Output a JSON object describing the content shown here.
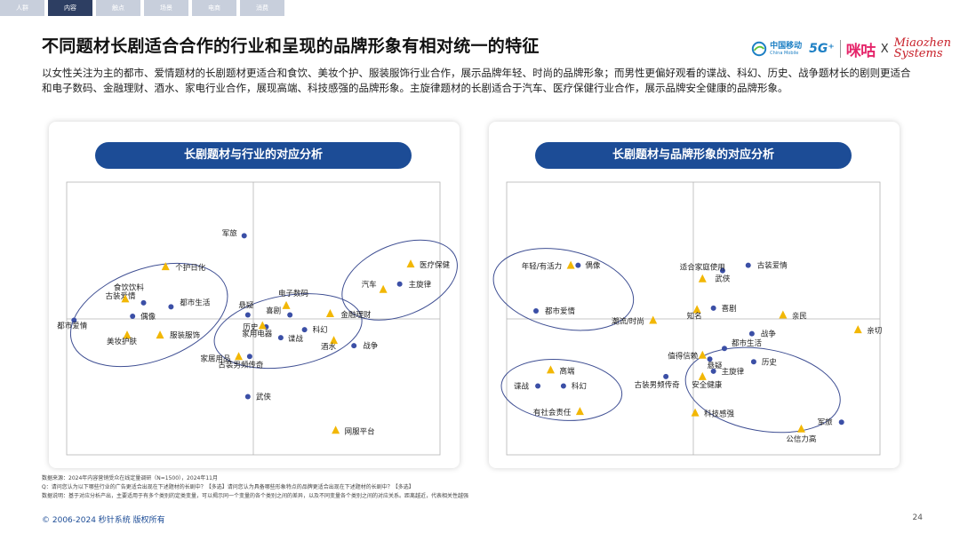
{
  "nav": {
    "tabs": [
      "人群",
      "内容",
      "触点",
      "场景",
      "电商",
      "消费"
    ],
    "active_index": 1
  },
  "title": "不同题材长剧适合合作的行业和呈现的品牌形象有相对统一的特征",
  "logos": {
    "china_mobile_cn": "中国移动",
    "china_mobile_en": "China Mobile",
    "five_g": "5G⁺",
    "migu": "咪咕",
    "x": "X",
    "miaozhen_1": "Miaozhen",
    "miaozhen_2": "Systems"
  },
  "intro": "以女性关注为主的都市、爱情题材的长剧题材更适合和食饮、美妆个护、服装服饰行业合作，展示品牌年轻、时尚的品牌形象；而男性更偏好观看的谍战、科幻、历史、战争题材长的剧则更适合和电子数码、金融理财、酒水、家电行业合作，展现高端、科技感强的品牌形象。主旋律题材的长剧适合于汽车、医疗保健行业合作，展示品牌安全健康的品牌形象。",
  "colors": {
    "dot": "#3b4fa6",
    "triangle": "#f2b705",
    "ellipse": "#3f4f93",
    "pill": "#1c4c96",
    "axis": "#b5b5b5",
    "nav_active": "#2d3e62",
    "nav_inactive": "#c8cfdc"
  },
  "chart_data": [
    {
      "type": "scatter",
      "title": "长剧题材与行业的对应分析",
      "xlim": [
        -1,
        1
      ],
      "ylim": [
        -1,
        1
      ],
      "grid": false,
      "series": [
        {
          "marker": "circle",
          "points": [
            {
              "label": "军旅",
              "x": -0.05,
              "y": 0.62
            },
            {
              "label": "古装爱情",
              "x": -0.6,
              "y": 0.12
            },
            {
              "label": "都市生活",
              "x": -0.45,
              "y": 0.09
            },
            {
              "label": "偶像",
              "x": -0.66,
              "y": 0.02
            },
            {
              "label": "都市爱情",
              "x": -0.98,
              "y": -0.01
            },
            {
              "label": "悬疑",
              "x": -0.03,
              "y": 0.03
            },
            {
              "label": "喜剧",
              "x": 0.2,
              "y": 0.03
            },
            {
              "label": "历史",
              "x": 0.07,
              "y": -0.06
            },
            {
              "label": "科幻",
              "x": 0.28,
              "y": -0.08
            },
            {
              "label": "谍战",
              "x": 0.15,
              "y": -0.14
            },
            {
              "label": "战争",
              "x": 0.55,
              "y": -0.2
            },
            {
              "label": "古装男频传奇",
              "x": -0.02,
              "y": -0.28
            },
            {
              "label": "主旋律",
              "x": 0.8,
              "y": 0.26
            },
            {
              "label": "武侠",
              "x": -0.03,
              "y": -0.58
            }
          ]
        },
        {
          "marker": "triangle",
          "points": [
            {
              "label": "个护日化",
              "x": -0.48,
              "y": 0.39
            },
            {
              "label": "食饮饮料",
              "x": -0.7,
              "y": 0.15
            },
            {
              "label": "美妆护肤",
              "x": -0.69,
              "y": -0.12
            },
            {
              "label": "服装服饰",
              "x": -0.51,
              "y": -0.12
            },
            {
              "label": "家居用品",
              "x": -0.08,
              "y": -0.28
            },
            {
              "label": "电子数码",
              "x": 0.18,
              "y": 0.1
            },
            {
              "label": "金融理财",
              "x": 0.42,
              "y": 0.04
            },
            {
              "label": "家用电器",
              "x": 0.05,
              "y": -0.05
            },
            {
              "label": "酒水",
              "x": 0.44,
              "y": -0.16
            },
            {
              "label": "医疗保健",
              "x": 0.86,
              "y": 0.41
            },
            {
              "label": "汽车",
              "x": 0.71,
              "y": 0.22
            },
            {
              "label": "网服平台",
              "x": 0.45,
              "y": -0.83
            }
          ]
        }
      ]
    },
    {
      "type": "scatter",
      "title": "长剧题材与品牌形象的对应分析",
      "xlim": [
        -1,
        1
      ],
      "ylim": [
        -1,
        1
      ],
      "grid": false,
      "series": [
        {
          "marker": "circle",
          "points": [
            {
              "label": "偶像",
              "x": -0.63,
              "y": 0.4
            },
            {
              "label": "都市爱情",
              "x": -0.86,
              "y": 0.06
            },
            {
              "label": "古装爱情",
              "x": 0.3,
              "y": 0.4
            },
            {
              "label": "武侠",
              "x": 0.16,
              "y": 0.36
            },
            {
              "label": "喜剧",
              "x": 0.11,
              "y": 0.08
            },
            {
              "label": "战争",
              "x": 0.32,
              "y": -0.11
            },
            {
              "label": "都市生活",
              "x": 0.17,
              "y": -0.22
            },
            {
              "label": "悬疑",
              "x": 0.09,
              "y": -0.3
            },
            {
              "label": "历史",
              "x": 0.33,
              "y": -0.32
            },
            {
              "label": "主旋律",
              "x": 0.11,
              "y": -0.39
            },
            {
              "label": "古装男频传奇",
              "x": -0.15,
              "y": -0.43
            },
            {
              "label": "谍战",
              "x": -0.85,
              "y": -0.5
            },
            {
              "label": "科幻",
              "x": -0.71,
              "y": -0.5
            },
            {
              "label": "军旅",
              "x": 0.81,
              "y": -0.77
            }
          ]
        },
        {
          "marker": "triangle",
          "points": [
            {
              "label": "年轻/有活力",
              "x": -0.67,
              "y": 0.4
            },
            {
              "label": "适合家庭使用",
              "x": 0.05,
              "y": 0.3
            },
            {
              "label": "知名",
              "x": 0.02,
              "y": 0.07
            },
            {
              "label": "潮流/时尚",
              "x": -0.22,
              "y": -0.01
            },
            {
              "label": "亲民",
              "x": 0.49,
              "y": 0.03
            },
            {
              "label": "亲切",
              "x": 0.9,
              "y": -0.08
            },
            {
              "label": "值得信赖",
              "x": 0.05,
              "y": -0.27
            },
            {
              "label": "高端",
              "x": -0.78,
              "y": -0.38
            },
            {
              "label": "安全健康",
              "x": 0.05,
              "y": -0.43
            },
            {
              "label": "有社会责任",
              "x": -0.62,
              "y": -0.69
            },
            {
              "label": "科技感强",
              "x": 0.01,
              "y": -0.7
            },
            {
              "label": "公信力高",
              "x": 0.59,
              "y": -0.82
            }
          ]
        }
      ]
    }
  ],
  "source": {
    "line1": "数据来源：2024年内容营销受众在线定量调研（N=1500），2024年11月",
    "line2": "Q：请问您认为以下哪些行业的广告更适合出现在下述题材的长剧中？【多选】请问您认为具备哪些形象特点的品牌更适合出现在下述题材的长剧中？【多选】",
    "line3": "数据说明：基于对应分析产出，主要适用于有多个类别的定类变量，可以揭示同一个变量的各个类别之间的差异，以及不同变量各个类别之间的对应关系。距离越近，代表相关性越强"
  },
  "footer": "© 2006-2024 秒针系统 版权所有",
  "page_number": "24"
}
